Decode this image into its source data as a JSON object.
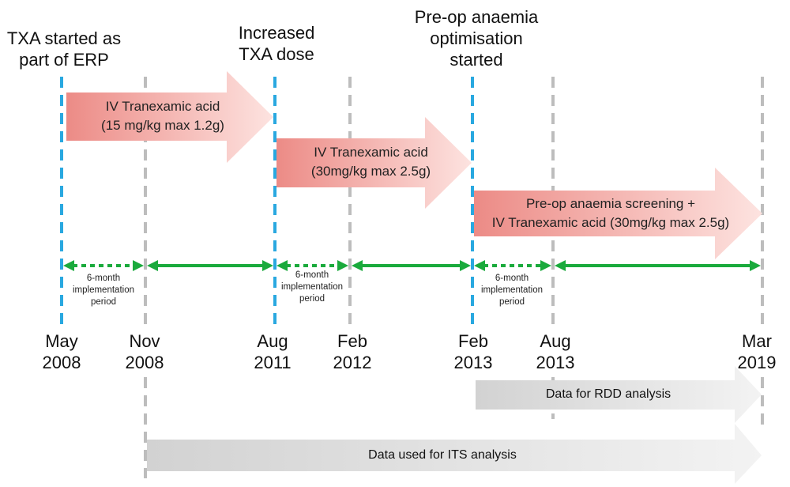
{
  "events": {
    "txa_started": {
      "line1": "TXA started as",
      "line2": "part of ERP"
    },
    "increased_dose": {
      "line1": "Increased",
      "line2": "TXA dose"
    },
    "preop_started": {
      "line1": "Pre-op anaemia",
      "line2": "optimisation",
      "line3": "started"
    }
  },
  "dates": [
    {
      "month": "May",
      "year": "2008",
      "line": "blue"
    },
    {
      "month": "Nov",
      "year": "2008",
      "line": "gray"
    },
    {
      "month": "Aug",
      "year": "2011",
      "line": "blue"
    },
    {
      "month": "Feb",
      "year": "2012",
      "line": "gray"
    },
    {
      "month": "Feb",
      "year": "2013",
      "line": "blue"
    },
    {
      "month": "Aug",
      "year": "2013",
      "line": "gray"
    },
    {
      "month": "Mar",
      "year": "2019",
      "line": "gray"
    }
  ],
  "interventions": [
    {
      "line1": "IV Tranexamic acid",
      "line2": "(15 mg/kg max 1.2g)"
    },
    {
      "line1": "IV Tranexamic acid",
      "line2": "(30mg/kg max 2.5g)"
    },
    {
      "line1": "Pre-op anaemia screening +",
      "line2": "IV Tranexamic acid (30mg/kg max 2.5g)"
    }
  ],
  "implementation_label": {
    "line1": "6-month",
    "line2": "implementation",
    "line3": "period"
  },
  "data_ranges": {
    "rdd": "Data for RDD analysis",
    "its": "Data used for ITS analysis"
  },
  "colors": {
    "blue_dash": "#29a8e0",
    "gray_dash": "#bdbdbd",
    "green": "#1aaa3c",
    "salmon_dark": "#ec8b86",
    "salmon_light": "#fde3e0",
    "gray_arrow_dark": "#d2d2d2",
    "gray_arrow_light": "#f3f3f3"
  }
}
